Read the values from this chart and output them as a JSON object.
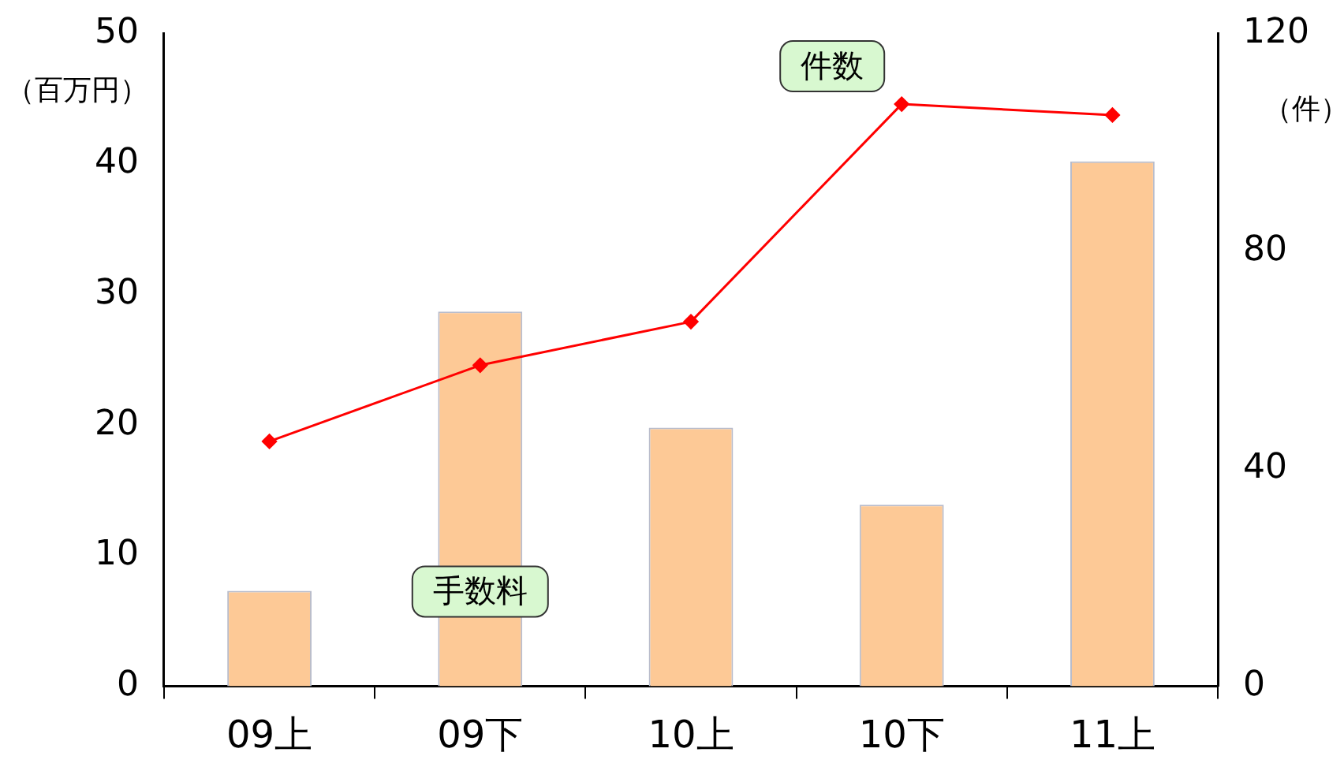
{
  "chart_data": {
    "type": "bar",
    "categories": [
      "09上",
      "09下",
      "10上",
      "10下",
      "11上"
    ],
    "ylabel": "（百万円）",
    "y2label": "（件）",
    "ylim": [
      0,
      50
    ],
    "yticks": [
      0,
      10,
      20,
      30,
      40,
      50
    ],
    "y2lim": [
      0,
      120
    ],
    "y2ticks": [
      0,
      40,
      80,
      120
    ],
    "grid": false,
    "legend": false,
    "series": [
      {
        "name": "手数料",
        "color": "#fdc996",
        "values": [
          7.3,
          28.7,
          19.8,
          13.9,
          40.2
        ]
      },
      {
        "name": "件数",
        "type": "line",
        "axis": "y2",
        "color": "#ff0000",
        "marker": "diamond",
        "values": [
          45,
          59,
          67,
          107,
          105
        ]
      }
    ]
  }
}
